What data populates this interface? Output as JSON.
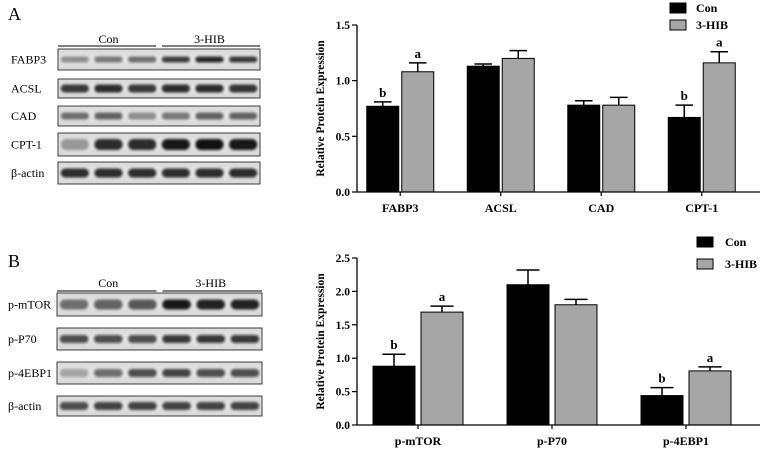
{
  "figure": {
    "panels": [
      {
        "label": "A",
        "blot": {
          "groups": [
            "Con",
            "3-HIB"
          ],
          "rows": [
            "FABP3",
            "ACSL",
            "CAD",
            "CPT-1",
            "β-actin"
          ]
        }
      },
      {
        "label": "B",
        "blot": {
          "groups": [
            "Con",
            "3-HIB"
          ],
          "rows": [
            "p-mTOR",
            "p-P70",
            "p-4EBP1",
            "β-actin"
          ]
        }
      }
    ]
  },
  "chart_data": [
    {
      "type": "bar",
      "ylabel": "Relative Protein Expression",
      "ylim": [
        0,
        1.5
      ],
      "yticks": [
        "0.0",
        "0.5",
        "1.0",
        "1.5"
      ],
      "categories": [
        "FABP3",
        "ACSL",
        "CAD",
        "CPT-1"
      ],
      "series": [
        {
          "name": "Con",
          "color": "#000000",
          "values": [
            0.77,
            1.13,
            0.78,
            0.67
          ],
          "errors": [
            0.04,
            0.02,
            0.04,
            0.11
          ],
          "letters": [
            "b",
            null,
            null,
            "b"
          ]
        },
        {
          "name": "3-HIB",
          "color": "#a6a6a6",
          "values": [
            1.08,
            1.2,
            0.78,
            1.16
          ],
          "errors": [
            0.08,
            0.07,
            0.07,
            0.1
          ],
          "letters": [
            "a",
            null,
            null,
            "a"
          ]
        }
      ],
      "legend": "top-right",
      "grid": false
    },
    {
      "type": "bar",
      "ylabel": "Relative Protein Expression",
      "ylim": [
        0,
        2.5
      ],
      "yticks": [
        "0.0",
        "0.5",
        "1.0",
        "1.5",
        "2.0",
        "2.5"
      ],
      "categories": [
        "p-mTOR",
        "p-P70",
        "p-4EBP1"
      ],
      "series": [
        {
          "name": "Con",
          "color": "#000000",
          "values": [
            0.88,
            2.1,
            0.44
          ],
          "errors": [
            0.18,
            0.22,
            0.12
          ],
          "letters": [
            "b",
            null,
            "b"
          ]
        },
        {
          "name": "3-HIB",
          "color": "#a6a6a6",
          "values": [
            1.69,
            1.8,
            0.81
          ],
          "errors": [
            0.09,
            0.08,
            0.06
          ],
          "letters": [
            "a",
            null,
            "a"
          ]
        }
      ],
      "legend": "top-right",
      "grid": false
    }
  ]
}
